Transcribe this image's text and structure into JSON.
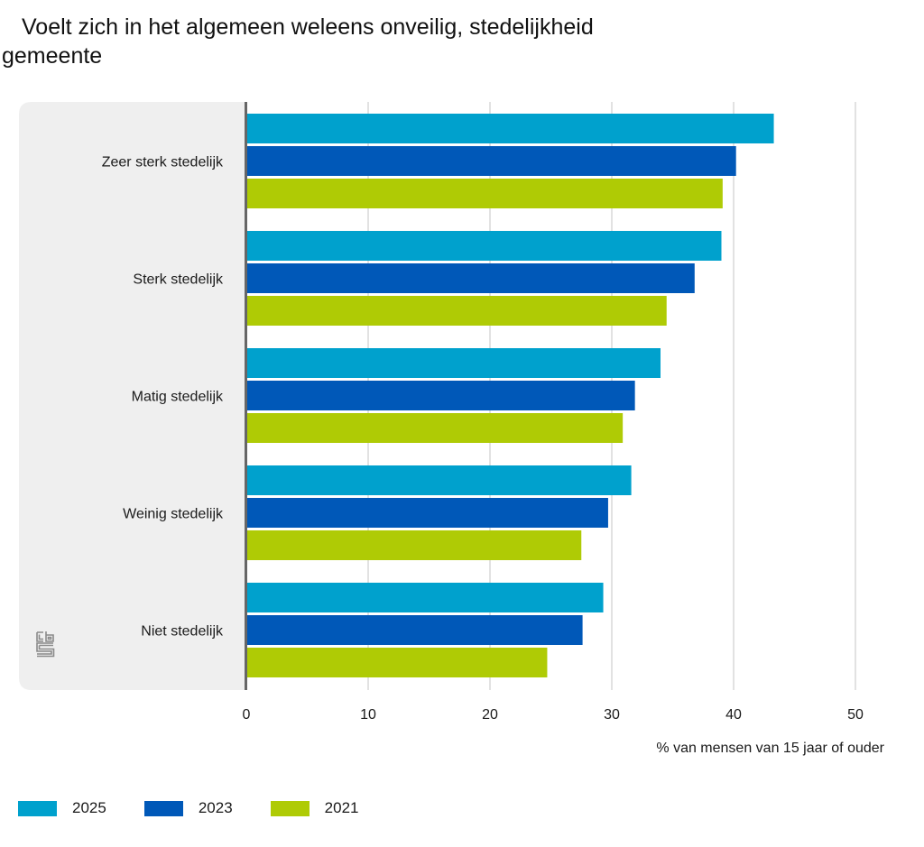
{
  "title_line1": "Voelt zich in het algemeen weleens onveilig, stedelijkheid",
  "title_line2": "gemeente",
  "logo": "cbs-logo-icon",
  "chart_data": {
    "type": "bar",
    "orientation": "horizontal",
    "title": "Voelt zich in het algemeen weleens onveilig, stedelijkheid gemeente",
    "categories": [
      "Zeer sterk stedelijk",
      "Sterk stedelijk",
      "Matig stedelijk",
      "Weinig stedelijk",
      "Niet stedelijk"
    ],
    "series": [
      {
        "name": "2025",
        "color": "#00a1cd",
        "values": [
          43.3,
          39.0,
          34.0,
          31.6,
          29.3
        ]
      },
      {
        "name": "2023",
        "color": "#0058b8",
        "values": [
          40.2,
          36.8,
          31.9,
          29.7,
          27.6
        ]
      },
      {
        "name": "2021",
        "color": "#afcb05",
        "values": [
          39.1,
          34.5,
          30.9,
          27.5,
          24.7
        ]
      }
    ],
    "xlabel": "% van mensen van 15 jaar of ouder",
    "ylabel": "",
    "xlim": [
      0,
      50
    ],
    "xticks": [
      "0",
      "10",
      "20",
      "30",
      "40",
      "50"
    ],
    "grid": true,
    "legend_position": "bottom-left"
  }
}
